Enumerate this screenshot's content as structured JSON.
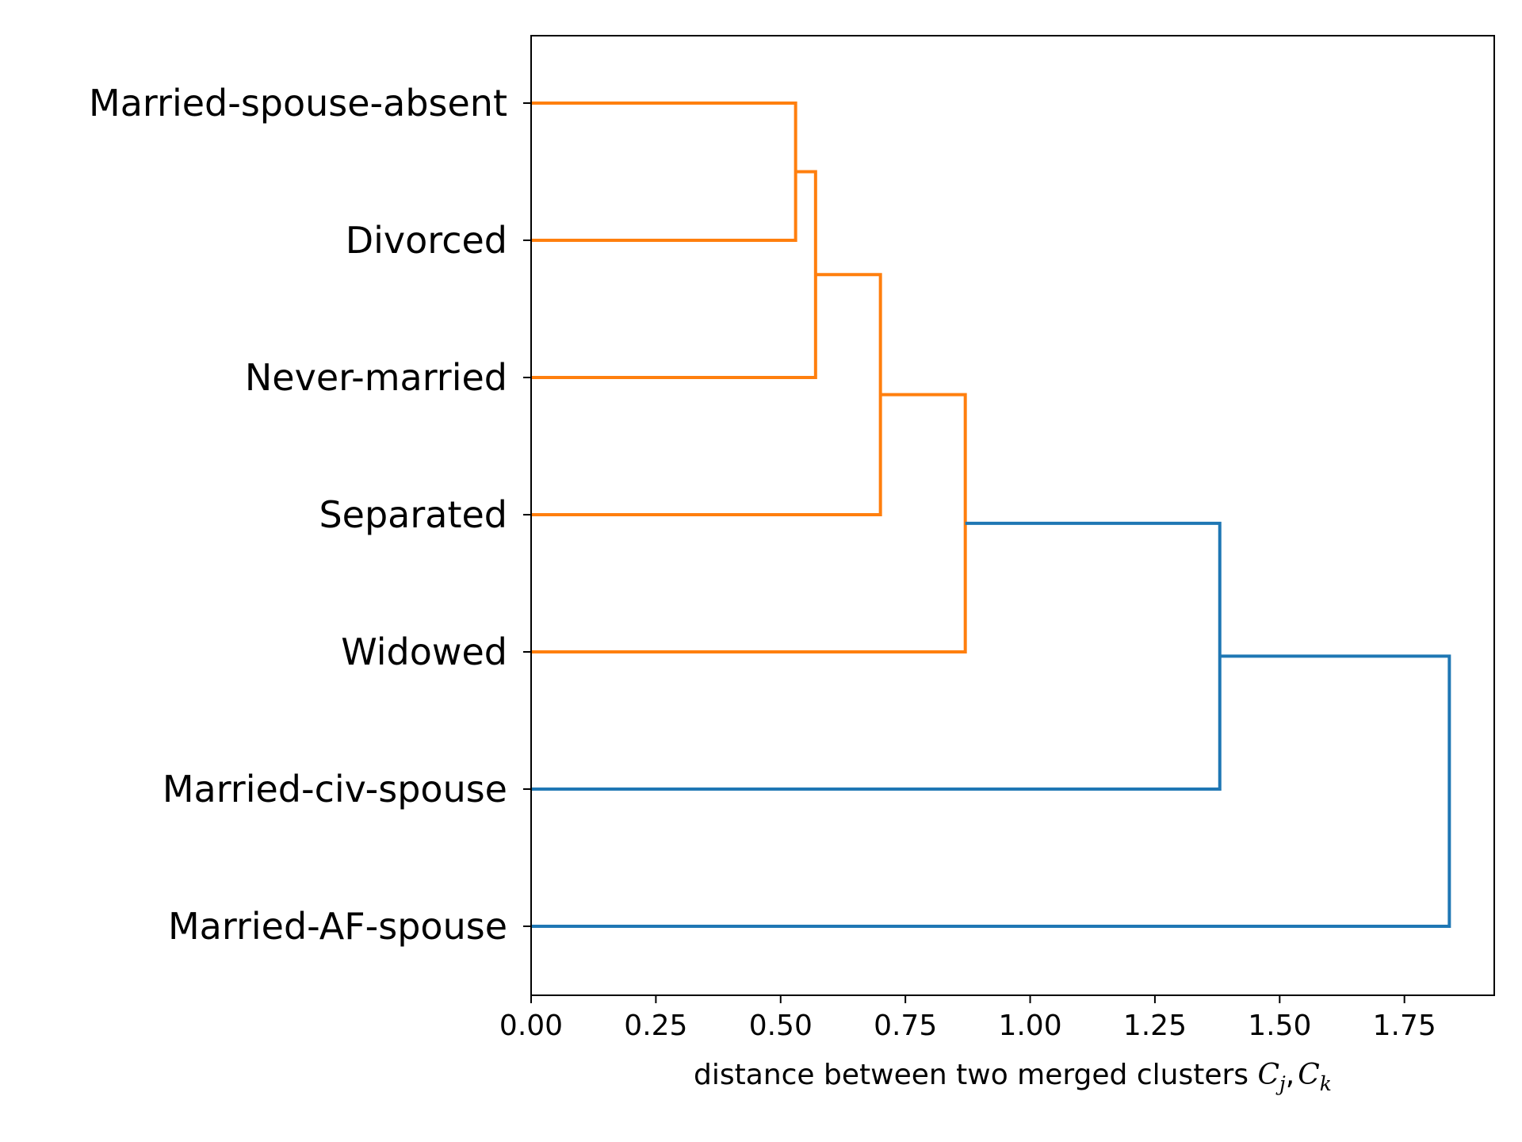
{
  "chart_data": {
    "type": "dendrogram",
    "orientation": "horizontal",
    "leaves": [
      "Married-spouse-absent",
      "Divorced",
      "Never-married",
      "Separated",
      "Widowed",
      "Married-civ-spouse",
      "Married-AF-spouse"
    ],
    "merges": [
      {
        "left": "Married-spouse-absent",
        "right": "Divorced",
        "distance": 0.53,
        "color": "#ff7f0e"
      },
      {
        "left": "merge-1",
        "right": "Never-married",
        "distance": 0.57,
        "color": "#ff7f0e"
      },
      {
        "left": "merge-2",
        "right": "Separated",
        "distance": 0.7,
        "color": "#ff7f0e"
      },
      {
        "left": "merge-3",
        "right": "Widowed",
        "distance": 0.87,
        "color": "#ff7f0e"
      },
      {
        "left": "merge-4",
        "right": "Married-civ-spouse",
        "distance": 1.38,
        "color": "#1f77b4"
      },
      {
        "left": "merge-5",
        "right": "Married-AF-spouse",
        "distance": 1.84,
        "color": "#1f77b4"
      }
    ],
    "xlim": [
      0,
      1.93
    ],
    "xticks": [
      0.0,
      0.25,
      0.5,
      0.75,
      1.0,
      1.25,
      1.5,
      1.75
    ],
    "xtick_labels": [
      "0.00",
      "0.25",
      "0.50",
      "0.75",
      "1.00",
      "1.25",
      "1.50",
      "1.75"
    ],
    "xlabel": {
      "prefix": "distance between two merged clusters",
      "c1": "C",
      "c1_sub": "j",
      "sep": ",",
      "c2": "C",
      "c2_sub": "k"
    },
    "colors": {
      "cluster": "#ff7f0e",
      "above_threshold": "#1f77b4"
    }
  }
}
